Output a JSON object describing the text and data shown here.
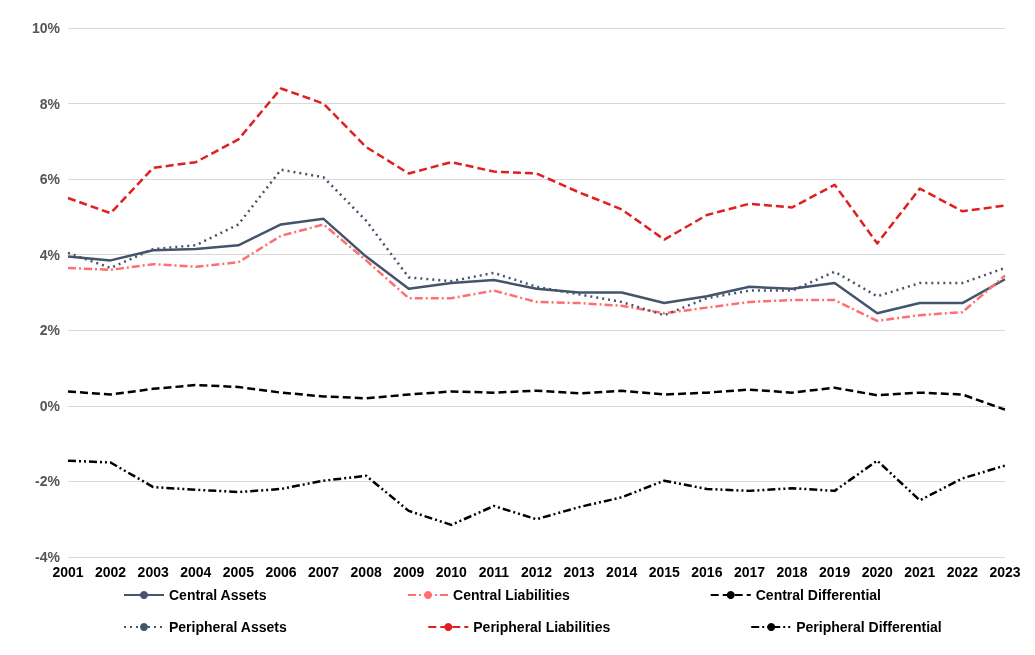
{
  "chart_data": {
    "type": "line",
    "categories": [
      "2001",
      "2002",
      "2003",
      "2004",
      "2005",
      "2006",
      "2007",
      "2008",
      "2009",
      "2010",
      "2011",
      "2012",
      "2013",
      "2014",
      "2015",
      "2016",
      "2017",
      "2018",
      "2019",
      "2020",
      "2021",
      "2022",
      "2023"
    ],
    "series": [
      {
        "name": "Central Assets",
        "color": "#44546a",
        "line_style": "solid",
        "values": [
          3.95,
          3.85,
          4.12,
          4.15,
          4.25,
          4.8,
          4.95,
          3.95,
          3.1,
          3.25,
          3.33,
          3.1,
          3.0,
          3.0,
          2.72,
          2.9,
          3.15,
          3.1,
          3.25,
          2.45,
          2.72,
          2.72,
          3.35
        ]
      },
      {
        "name": "Central Liabilities",
        "color": "#ff6f6f",
        "line_style": "dashdot",
        "values": [
          3.65,
          3.6,
          3.75,
          3.68,
          3.8,
          4.5,
          4.8,
          3.85,
          2.85,
          2.85,
          3.05,
          2.75,
          2.72,
          2.65,
          2.45,
          2.6,
          2.75,
          2.8,
          2.8,
          2.25,
          2.4,
          2.48,
          3.45
        ]
      },
      {
        "name": "Central Differential",
        "color": "#000000",
        "line_style": "dashed",
        "values": [
          0.38,
          0.3,
          0.45,
          0.55,
          0.5,
          0.35,
          0.25,
          0.2,
          0.3,
          0.38,
          0.35,
          0.4,
          0.33,
          0.4,
          0.3,
          0.35,
          0.43,
          0.35,
          0.48,
          0.28,
          0.35,
          0.3,
          -0.1
        ]
      },
      {
        "name": "Peripheral Assets",
        "color": "#44546a",
        "line_style": "dotted",
        "values": [
          4.05,
          3.65,
          4.15,
          4.25,
          4.8,
          6.25,
          6.05,
          4.9,
          3.4,
          3.3,
          3.52,
          3.15,
          2.95,
          2.75,
          2.4,
          2.85,
          3.05,
          3.05,
          3.55,
          2.9,
          3.25,
          3.25,
          3.65
        ]
      },
      {
        "name": "Peripheral Liabilities",
        "color": "#e02020",
        "line_style": "dashed",
        "values": [
          5.5,
          5.1,
          6.3,
          6.45,
          7.05,
          8.4,
          8.0,
          6.85,
          6.15,
          6.45,
          6.2,
          6.15,
          5.65,
          5.2,
          4.4,
          5.05,
          5.35,
          5.25,
          5.85,
          4.3,
          5.75,
          5.15,
          5.3
        ]
      },
      {
        "name": "Peripheral Differential",
        "color": "#000000",
        "line_style": "dashdotdot",
        "values": [
          -1.45,
          -1.5,
          -2.15,
          -2.22,
          -2.28,
          -2.2,
          -1.98,
          -1.85,
          -2.78,
          -3.15,
          -2.65,
          -3.0,
          -2.68,
          -2.42,
          -1.98,
          -2.2,
          -2.25,
          -2.18,
          -2.25,
          -1.45,
          -2.5,
          -1.92,
          -1.58
        ]
      }
    ],
    "ylim": [
      -4,
      10
    ],
    "yticks": [
      {
        "value": -4,
        "label": "-4%"
      },
      {
        "value": -2,
        "label": "-2%"
      },
      {
        "value": 0,
        "label": "0%"
      },
      {
        "value": 2,
        "label": "2%"
      },
      {
        "value": 4,
        "label": "4%"
      },
      {
        "value": 6,
        "label": "6%"
      },
      {
        "value": 8,
        "label": "8%"
      },
      {
        "value": 10,
        "label": "10%"
      }
    ],
    "grid": "y",
    "legend": "bottom",
    "marker": "none"
  }
}
